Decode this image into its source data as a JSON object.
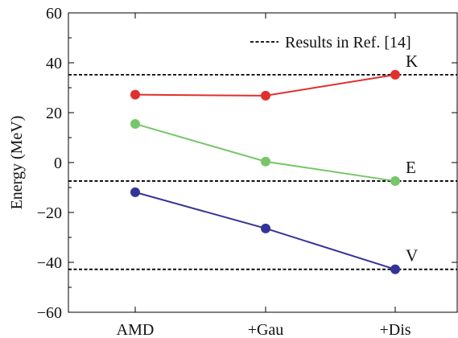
{
  "chart_data": {
    "type": "line",
    "title": "",
    "xlabel": "",
    "ylabel": "Energy (MeV)",
    "categories": [
      "AMD",
      "+Gau",
      "+Dis"
    ],
    "ylim": [
      -60,
      60
    ],
    "yticks": [
      -60,
      -40,
      -20,
      0,
      20,
      40,
      60
    ],
    "ytick_labels": [
      "−60",
      "−40",
      "−20",
      "0",
      "20",
      "40",
      "60"
    ],
    "series": [
      {
        "name": "K",
        "color": "#e0302e",
        "values": [
          27.2,
          26.8,
          35.2
        ]
      },
      {
        "name": "E",
        "color": "#77c66a",
        "values": [
          15.5,
          0.4,
          -7.4
        ]
      },
      {
        "name": "V",
        "color": "#33339a",
        "values": [
          -11.9,
          -26.4,
          -42.8
        ]
      }
    ],
    "reference_lines": {
      "legend_label": "Results in Ref. [14]",
      "style": "dashed",
      "color": "#000000",
      "values": [
        35.2,
        -7.4,
        -42.8
      ]
    },
    "grid": false,
    "legend_position": "top-right"
  }
}
